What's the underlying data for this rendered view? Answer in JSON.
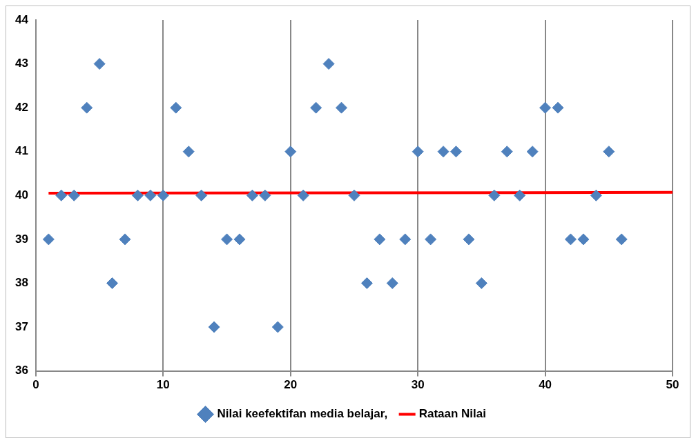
{
  "chart_data": {
    "type": "scatter",
    "xlim": [
      0,
      50
    ],
    "xticks": [
      0,
      10,
      20,
      30,
      40,
      50
    ],
    "ylim": [
      36,
      44
    ],
    "yticks": [
      36,
      37,
      38,
      39,
      40,
      41,
      42,
      43,
      44
    ],
    "grid": "x",
    "legend": "bottom",
    "series": [
      {
        "name": "Nilai keefektifan media belajar,",
        "color": "#4f81bd",
        "marker": "diamond",
        "x": [
          1,
          2,
          3,
          4,
          5,
          6,
          7,
          8,
          9,
          10,
          11,
          12,
          13,
          14,
          15,
          16,
          17,
          18,
          19,
          20,
          21,
          22,
          23,
          24,
          25,
          26,
          27,
          28,
          29,
          30,
          31,
          32,
          33,
          34,
          35,
          36,
          37,
          38,
          39,
          40,
          41,
          42,
          43,
          44,
          45,
          46
        ],
        "values": [
          39,
          40,
          40,
          42,
          43,
          38,
          39,
          40,
          40,
          40,
          42,
          41,
          40,
          37,
          39,
          39,
          40,
          40,
          37,
          41,
          40,
          42,
          43,
          42,
          40,
          38,
          39,
          38,
          39,
          41,
          39,
          41,
          41,
          39,
          38,
          40,
          41,
          40,
          41,
          42,
          42,
          39,
          39,
          40,
          41,
          39
        ]
      },
      {
        "name": "Rataan Nilai",
        "type": "line",
        "color": "#ff0000",
        "marker": "none",
        "x": [
          1,
          50
        ],
        "values": [
          40.05,
          40.07
        ]
      }
    ]
  }
}
